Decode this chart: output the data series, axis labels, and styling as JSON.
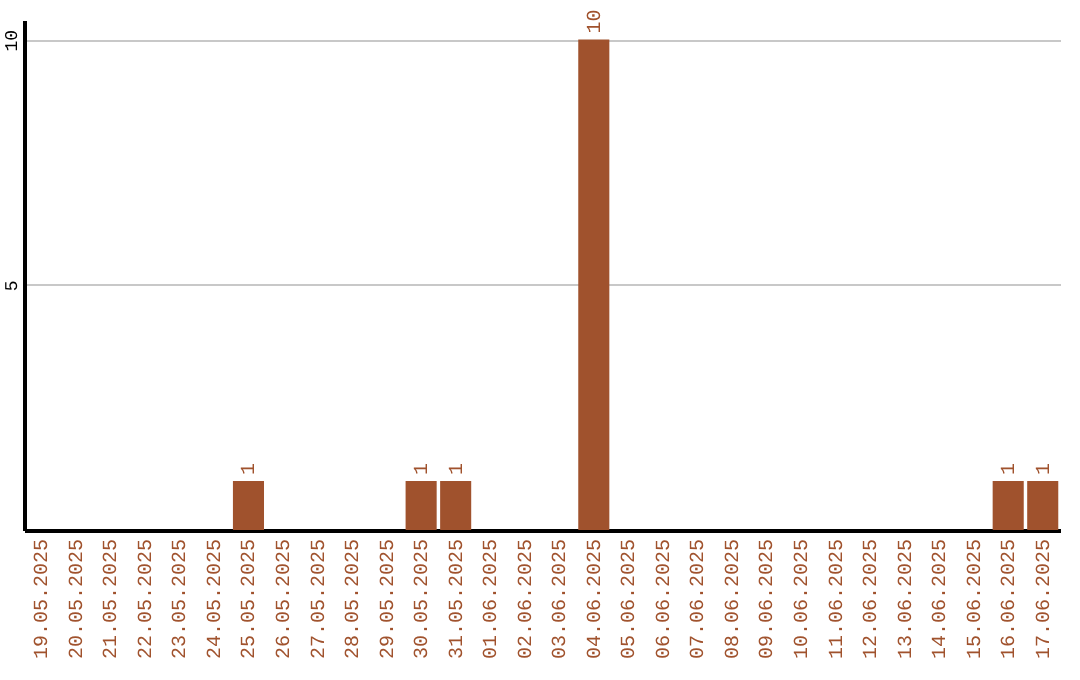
{
  "chart_data": {
    "type": "bar",
    "categories": [
      "19.05.2025",
      "20.05.2025",
      "21.05.2025",
      "22.05.2025",
      "23.05.2025",
      "24.05.2025",
      "25.05.2025",
      "26.05.2025",
      "27.05.2025",
      "28.05.2025",
      "29.05.2025",
      "30.05.2025",
      "31.05.2025",
      "01.06.2025",
      "02.06.2025",
      "03.06.2025",
      "04.06.2025",
      "05.06.2025",
      "06.06.2025",
      "07.06.2025",
      "08.06.2025",
      "09.06.2025",
      "10.06.2025",
      "11.06.2025",
      "12.06.2025",
      "13.06.2025",
      "14.06.2025",
      "15.06.2025",
      "16.06.2025",
      "17.06.2025"
    ],
    "values": [
      0,
      0,
      0,
      0,
      0,
      0,
      1,
      0,
      0,
      0,
      0,
      1,
      1,
      0,
      0,
      0,
      10,
      0,
      0,
      0,
      0,
      0,
      0,
      0,
      0,
      0,
      0,
      0,
      1,
      1
    ],
    "value_labels": [
      null,
      null,
      null,
      null,
      null,
      null,
      "1",
      null,
      null,
      null,
      null,
      "1",
      "1",
      null,
      null,
      null,
      "10",
      null,
      null,
      null,
      null,
      null,
      null,
      null,
      null,
      null,
      null,
      null,
      "1",
      "1"
    ],
    "color": "#a0522d",
    "ylim": [
      0,
      10.4
    ],
    "yticks": [
      5,
      10
    ],
    "grid": "y"
  }
}
